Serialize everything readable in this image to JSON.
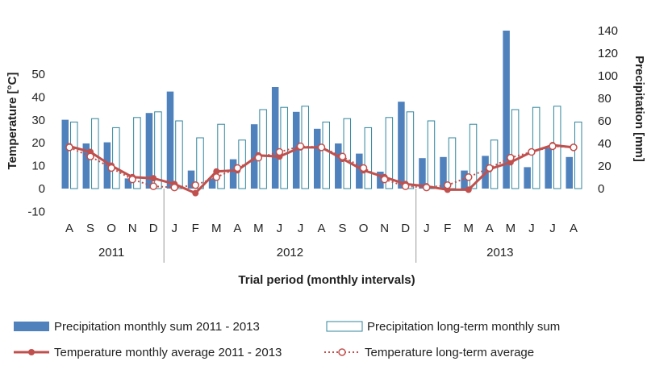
{
  "chart_data": {
    "type": "bar",
    "categories": [
      "A",
      "S",
      "O",
      "N",
      "D",
      "J",
      "F",
      "M",
      "A",
      "M",
      "J",
      "J",
      "A",
      "S",
      "O",
      "N",
      "D",
      "J",
      "F",
      "M",
      "A",
      "M",
      "J",
      "J",
      "A"
    ],
    "years": [
      "2011",
      "2012",
      "2013"
    ],
    "xlabel": "Trial period (monthly intervals)",
    "ylabel": "Temperature [°C]",
    "y2label": "Precipitation [mm]",
    "ylim": [
      -10,
      50
    ],
    "yticks": [
      "-10",
      "0",
      "10",
      "20",
      "30",
      "40",
      "50"
    ],
    "y2lim": [
      0,
      140
    ],
    "y2ticks": [
      "0",
      "20",
      "40",
      "60",
      "80",
      "100",
      "120",
      "140"
    ],
    "grid": false,
    "legend_position": "bottom",
    "series": [
      {
        "name": "Precipitation monthly sum 2011 - 2013",
        "type": "bar",
        "axis": "right",
        "color": "#4f81bd",
        "values": [
          61,
          40,
          41,
          9,
          67,
          86,
          16,
          9,
          26,
          57,
          90,
          68,
          53,
          40,
          31,
          15,
          77,
          27,
          28,
          16,
          29,
          140,
          19,
          36,
          28
        ]
      },
      {
        "name": "Precipitation long-term monthly sum",
        "type": "bar",
        "axis": "right",
        "color": "#31859c",
        "values": [
          59,
          62,
          54,
          63,
          68,
          60,
          45,
          57,
          43,
          70,
          72,
          73,
          59,
          62,
          54,
          63,
          68,
          60,
          45,
          57,
          43,
          70,
          72,
          73,
          59
        ]
      },
      {
        "name": "Temperature monthly average 2011 - 2013",
        "type": "line",
        "axis": "left",
        "color": "#c0504d",
        "values": [
          18.5,
          16,
          10,
          5,
          4.5,
          2,
          -2,
          7.5,
          8,
          14.5,
          14,
          18,
          18,
          13,
          8,
          5,
          2,
          1,
          -0.5,
          -0.5,
          8.5,
          11.5,
          16,
          19,
          18
        ]
      },
      {
        "name": "Temperature long-term average",
        "type": "line",
        "axis": "left",
        "color": "#c0504d",
        "values": [
          18,
          14,
          9,
          4,
          1,
          0.5,
          1.5,
          5,
          9,
          13.5,
          16,
          18.5,
          18,
          14,
          9,
          4,
          1,
          0.5,
          1.5,
          5,
          9,
          13.5,
          16,
          18.5,
          18
        ]
      }
    ]
  }
}
